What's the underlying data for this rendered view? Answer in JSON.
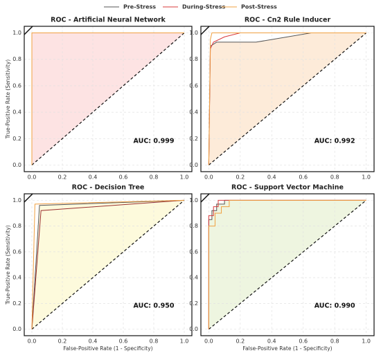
{
  "chart_data": [
    {
      "type": "line",
      "title": "ROC - Artificial Neural Network",
      "ylabel": "True-Positive Rate (Sensitivity)",
      "annotation": "AUC: 0.999",
      "fill_color": "#fde3e3",
      "xlim": [
        -0.05,
        1.05
      ],
      "ylim": [
        -0.05,
        1.05
      ],
      "grid": true,
      "xticks": [
        {
          "value": 0,
          "label": "0.0"
        },
        0.2,
        0.4,
        0.6,
        0.8,
        {
          "value": 1,
          "label": "1.0"
        }
      ],
      "yticks": [
        {
          "value": 0,
          "label": "0.0"
        },
        0.2,
        0.4,
        0.6,
        0.8,
        {
          "value": 1,
          "label": "1.0"
        }
      ],
      "series": [
        {
          "name": "Pre-Stress",
          "color": "#555555",
          "x": [
            0,
            0,
            1
          ],
          "values": [
            0,
            1,
            1
          ]
        },
        {
          "name": "During-Stress",
          "color": "#d9383a",
          "x": [
            0,
            0,
            1
          ],
          "values": [
            0,
            1,
            1
          ]
        },
        {
          "name": "Post-Stress",
          "color": "#f0a040",
          "x": [
            0,
            0,
            1
          ],
          "values": [
            0,
            1,
            1
          ]
        }
      ]
    },
    {
      "type": "line",
      "title": "ROC - Cn2 Rule Inducer",
      "annotation": "AUC: 0.992",
      "fill_color": "#fdebd9",
      "xlim": [
        -0.05,
        1.05
      ],
      "ylim": [
        -0.05,
        1.05
      ],
      "grid": true,
      "xticks": [
        {
          "value": 0,
          "label": "0.0"
        },
        0.2,
        0.4,
        0.6,
        0.8,
        {
          "value": 1,
          "label": "1.0"
        }
      ],
      "yticks": [
        {
          "value": 0,
          "label": "0.0"
        },
        0.2,
        0.4,
        0.6,
        0.8,
        {
          "value": 1,
          "label": "1.0"
        }
      ],
      "series": [
        {
          "name": "Pre-Stress",
          "color": "#555555",
          "x": [
            0,
            0.01,
            0.05,
            0.3,
            0.65,
            1
          ],
          "values": [
            0,
            0.9,
            0.93,
            0.93,
            1,
            1
          ]
        },
        {
          "name": "During-Stress",
          "color": "#d9383a",
          "x": [
            0,
            0.01,
            0.03,
            0.1,
            0.2,
            1
          ],
          "values": [
            0,
            0.88,
            0.93,
            0.97,
            1,
            1
          ]
        },
        {
          "name": "Post-Stress",
          "color": "#f0a040",
          "x": [
            0,
            0.01,
            0.02,
            1
          ],
          "values": [
            0,
            0.95,
            1,
            1
          ]
        }
      ]
    },
    {
      "type": "line",
      "title": "ROC - Decision Tree",
      "ylabel": "True-Positive Rate (Sensitivity)",
      "xlabel": "False-Positive Rate (1 - Specificity)",
      "annotation": "AUC: 0.950",
      "fill_color": "#fdfadc",
      "xlim": [
        -0.05,
        1.05
      ],
      "ylim": [
        -0.05,
        1.05
      ],
      "grid": true,
      "xticks": [
        {
          "value": 0,
          "label": "0.0"
        },
        0.2,
        0.4,
        0.6,
        0.8,
        {
          "value": 1,
          "label": "1.0"
        }
      ],
      "yticks": [
        {
          "value": 0,
          "label": "0.0"
        },
        0.2,
        0.4,
        0.6,
        0.8,
        {
          "value": 1,
          "label": "1.0"
        }
      ],
      "series": [
        {
          "name": "Pre-Stress",
          "color": "#555555",
          "x": [
            0,
            0.05,
            1
          ],
          "values": [
            0,
            0.96,
            1
          ]
        },
        {
          "name": "During-Stress",
          "color": "#9a3030",
          "x": [
            0,
            0.06,
            1
          ],
          "values": [
            0,
            0.92,
            1
          ]
        },
        {
          "name": "Post-Stress",
          "color": "#f0a040",
          "x": [
            0,
            0.02,
            1
          ],
          "values": [
            0,
            0.97,
            1
          ]
        }
      ]
    },
    {
      "type": "line",
      "title": "ROC - Support Vector Machine",
      "xlabel": "False-Positive Rate (1 - Specificity)",
      "annotation": "AUC: 0.990",
      "fill_color": "#eef5e0",
      "xlim": [
        -0.05,
        1.05
      ],
      "ylim": [
        -0.05,
        1.05
      ],
      "grid": true,
      "xticks": [
        {
          "value": 0,
          "label": "0.0"
        },
        0.2,
        0.4,
        0.6,
        0.8,
        {
          "value": 1,
          "label": "1.0"
        }
      ],
      "yticks": [
        {
          "value": 0,
          "label": "0.0"
        },
        0.2,
        0.4,
        0.6,
        0.8,
        {
          "value": 1,
          "label": "1.0"
        }
      ],
      "series": [
        {
          "name": "Pre-Stress",
          "color": "#555555",
          "x": [
            0,
            0,
            0.02,
            0.02,
            0.05,
            0.05,
            0.1,
            0.1,
            1
          ],
          "values": [
            0,
            0.85,
            0.85,
            0.92,
            0.92,
            0.97,
            0.97,
            1,
            1
          ]
        },
        {
          "name": "During-Stress",
          "color": "#d9383a",
          "x": [
            0,
            0,
            0.03,
            0.03,
            0.06,
            0.06,
            1
          ],
          "values": [
            0,
            0.88,
            0.88,
            0.95,
            0.95,
            1,
            1
          ]
        },
        {
          "name": "Post-Stress",
          "color": "#f0a040",
          "x": [
            0,
            0,
            0.04,
            0.04,
            0.08,
            0.08,
            0.13,
            0.13,
            1
          ],
          "values": [
            0,
            0.8,
            0.8,
            0.9,
            0.9,
            0.95,
            0.95,
            1,
            1
          ]
        }
      ]
    }
  ]
}
